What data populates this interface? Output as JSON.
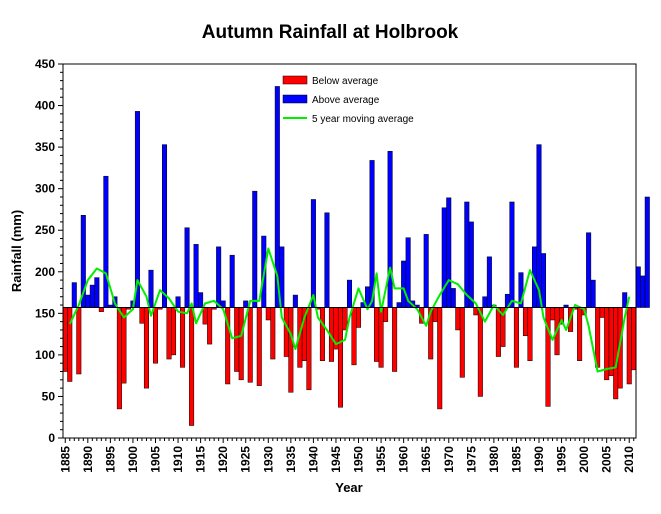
{
  "chart_data": {
    "type": "bar",
    "title": "Autumn Rainfall at Holbrook",
    "xlabel": "Year",
    "ylabel": "Rainfall (mm)",
    "ylim": [
      0,
      450
    ],
    "xlim": [
      1884.5,
      2011.5
    ],
    "yticks": [
      0,
      50,
      100,
      150,
      200,
      250,
      300,
      350,
      400,
      450
    ],
    "xticks": [
      1885,
      1890,
      1895,
      1900,
      1905,
      1910,
      1915,
      1920,
      1925,
      1930,
      1935,
      1940,
      1945,
      1950,
      1955,
      1960,
      1965,
      1970,
      1975,
      1980,
      1985,
      1990,
      1995,
      2000,
      2005,
      2010
    ],
    "baseline": 157,
    "grid": false,
    "legend_position": "top-center",
    "colors": {
      "below": "#ff0000",
      "above": "#0000ff",
      "moving_average": "#00ee00"
    },
    "legend": [
      "Below average",
      "Above average",
      "5 year moving average"
    ],
    "x_start": 1885,
    "values": [
      80,
      68,
      187,
      77,
      268,
      172,
      184,
      193,
      152,
      315,
      160,
      170,
      35,
      66,
      155,
      165,
      393,
      138,
      60,
      202,
      90,
      155,
      353,
      95,
      100,
      170,
      85,
      253,
      15,
      233,
      175,
      137,
      113,
      155,
      230,
      165,
      65,
      220,
      80,
      70,
      165,
      67,
      297,
      63,
      243,
      142,
      95,
      423,
      230,
      98,
      55,
      172,
      85,
      93,
      58,
      287,
      155,
      93,
      271,
      92,
      107,
      37,
      130,
      190,
      88,
      133,
      163,
      182,
      334,
      92,
      85,
      140,
      345,
      80,
      163,
      213,
      241,
      165,
      160,
      138,
      245,
      95,
      140,
      35,
      277,
      289,
      180,
      130,
      73,
      284,
      260,
      148,
      50,
      170,
      218,
      160,
      98,
      110,
      173,
      284,
      85,
      199,
      123,
      93,
      230,
      353,
      222,
      38,
      142,
      100,
      137,
      160,
      128,
      155,
      93,
      148,
      247,
      190,
      85,
      145,
      70,
      75,
      47,
      60,
      175,
      65,
      82,
      206,
      195,
      290
    ],
    "moving_average_series": {
      "name": "5 year moving average",
      "points": [
        [
          1886,
          137
        ],
        [
          1888,
          160
        ],
        [
          1890,
          190
        ],
        [
          1892,
          204
        ],
        [
          1894,
          198
        ],
        [
          1896,
          162
        ],
        [
          1898,
          145
        ],
        [
          1900,
          155
        ],
        [
          1901,
          190
        ],
        [
          1903,
          170
        ],
        [
          1904,
          147
        ],
        [
          1906,
          178
        ],
        [
          1908,
          168
        ],
        [
          1910,
          152
        ],
        [
          1912,
          150
        ],
        [
          1913,
          162
        ],
        [
          1914,
          138
        ],
        [
          1916,
          162
        ],
        [
          1918,
          165
        ],
        [
          1920,
          155
        ],
        [
          1922,
          120
        ],
        [
          1924,
          123
        ],
        [
          1926,
          165
        ],
        [
          1928,
          165
        ],
        [
          1930,
          228
        ],
        [
          1932,
          195
        ],
        [
          1933,
          145
        ],
        [
          1935,
          125
        ],
        [
          1936,
          107
        ],
        [
          1938,
          145
        ],
        [
          1940,
          172
        ],
        [
          1941,
          145
        ],
        [
          1943,
          130
        ],
        [
          1945,
          113
        ],
        [
          1947,
          118
        ],
        [
          1948,
          145
        ],
        [
          1950,
          180
        ],
        [
          1952,
          155
        ],
        [
          1953,
          165
        ],
        [
          1954,
          198
        ],
        [
          1955,
          152
        ],
        [
          1957,
          205
        ],
        [
          1958,
          180
        ],
        [
          1960,
          180
        ],
        [
          1961,
          165
        ],
        [
          1963,
          155
        ],
        [
          1965,
          135
        ],
        [
          1966,
          152
        ],
        [
          1968,
          172
        ],
        [
          1970,
          190
        ],
        [
          1972,
          185
        ],
        [
          1974,
          172
        ],
        [
          1976,
          162
        ],
        [
          1978,
          140
        ],
        [
          1980,
          160
        ],
        [
          1982,
          148
        ],
        [
          1984,
          165
        ],
        [
          1986,
          162
        ],
        [
          1988,
          202
        ],
        [
          1990,
          178
        ],
        [
          1991,
          145
        ],
        [
          1993,
          118
        ],
        [
          1995,
          142
        ],
        [
          1996,
          130
        ],
        [
          1998,
          160
        ],
        [
          2000,
          155
        ],
        [
          2001,
          135
        ],
        [
          2003,
          80
        ],
        [
          2005,
          83
        ],
        [
          2007,
          85
        ],
        [
          2009,
          145
        ],
        [
          2010,
          170
        ]
      ]
    }
  }
}
